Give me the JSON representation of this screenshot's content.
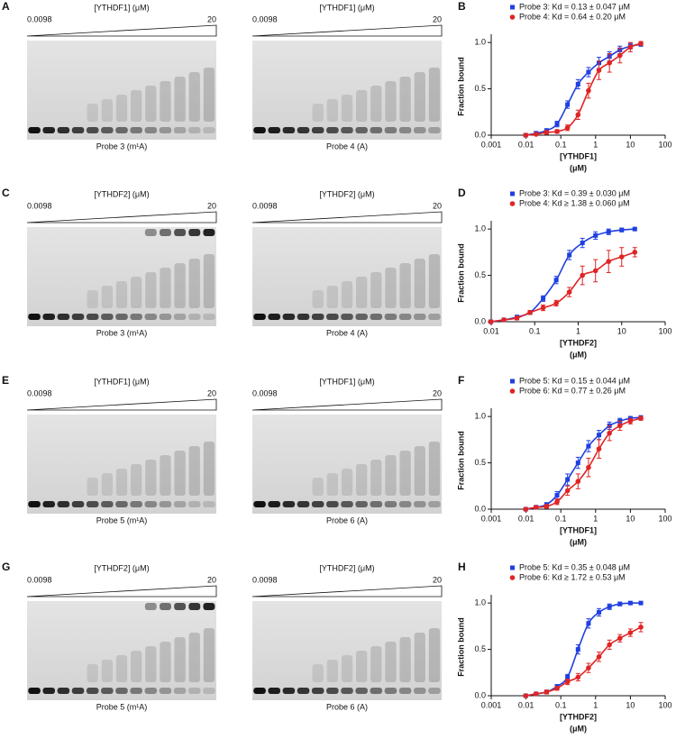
{
  "panels": [
    {
      "label": "A",
      "gels": [
        {
          "protein": "[YTHDF1] (μM)",
          "low": "0.0098",
          "high": "20",
          "caption": "Probe 3 (m¹A)"
        },
        {
          "protein": "[YTHDF1] (μM)",
          "low": "0.0098",
          "high": "20",
          "caption": "Probe 4 (A)"
        }
      ]
    },
    {
      "label": "C",
      "gels": [
        {
          "protein": "[YTHDF2] (μM)",
          "low": "0.0098",
          "high": "20",
          "caption": "Probe 3 (m¹A)"
        },
        {
          "protein": "[YTHDF2] (μM)",
          "low": "0.0098",
          "high": "20",
          "caption": "Probe 4 (A)"
        }
      ]
    },
    {
      "label": "E",
      "gels": [
        {
          "protein": "[YTHDF1] (μM)",
          "low": "0.0098",
          "high": "20",
          "caption": "Probe 5 (m¹A)"
        },
        {
          "protein": "[YTHDF1] (μM)",
          "low": "0.0098",
          "high": "20",
          "caption": "Probe 6 (A)"
        }
      ]
    },
    {
      "label": "G",
      "gels": [
        {
          "protein": "[YTHDF2] (μM)",
          "low": "0.0098",
          "high": "20",
          "caption": "Probe 5 (m¹A)"
        },
        {
          "protein": "[YTHDF2] (μM)",
          "low": "0.0098",
          "high": "20",
          "caption": "Probe 6 (A)"
        }
      ]
    }
  ],
  "chart_data": [
    {
      "type": "scatter",
      "label": "B",
      "ylabel": "Fraction bound",
      "xlabel": "[YTHDF1]",
      "xlabel_unit": "(μM)",
      "log_x": true,
      "xlim": [
        0.001,
        100
      ],
      "xticks": [
        0.001,
        0.01,
        0.1,
        1,
        10,
        100
      ],
      "ylim": [
        0,
        1.05
      ],
      "yticks": [
        {
          "value": 0,
          "label": "0.0"
        },
        0.5,
        {
          "value": 1,
          "label": "1.0"
        }
      ],
      "x": [
        0.0098,
        0.0195,
        0.039,
        0.078,
        0.156,
        0.3125,
        0.625,
        1.25,
        2.5,
        5,
        10,
        20
      ],
      "series": [
        {
          "name": "Probe 3: Kd = 0.13 ± 0.047 μM",
          "color": "#1f3fe0",
          "marker": "square",
          "values": [
            0,
            0.02,
            0.05,
            0.12,
            0.33,
            0.55,
            0.68,
            0.78,
            0.85,
            0.92,
            0.96,
            0.98
          ],
          "errors": [
            0.01,
            0.02,
            0.02,
            0.03,
            0.04,
            0.05,
            0.05,
            0.06,
            0.05,
            0.04,
            0.03,
            0.02
          ]
        },
        {
          "name": "Probe 4: Kd = 0.64 ± 0.20 μM",
          "color": "#e02424",
          "marker": "circle",
          "values": [
            0,
            0.01,
            0.03,
            0.04,
            0.08,
            0.22,
            0.48,
            0.7,
            0.78,
            0.86,
            0.95,
            0.99
          ],
          "errors": [
            0.01,
            0.01,
            0.02,
            0.02,
            0.03,
            0.05,
            0.08,
            0.1,
            0.1,
            0.08,
            0.05,
            0.02
          ]
        }
      ]
    },
    {
      "type": "scatter",
      "label": "D",
      "ylabel": "Fraction bound",
      "xlabel": "[YTHDF2]",
      "xlabel_unit": "(μM)",
      "log_x": true,
      "xlim": [
        0.01,
        100
      ],
      "xticks": [
        0.01,
        0.1,
        1,
        10,
        100
      ],
      "ylim": [
        0,
        1.05
      ],
      "yticks": [
        {
          "value": 0,
          "label": "0.0"
        },
        0.5,
        {
          "value": 1,
          "label": "1.0"
        }
      ],
      "x": [
        0.0098,
        0.0195,
        0.039,
        0.078,
        0.156,
        0.3125,
        0.625,
        1.25,
        2.5,
        5,
        10,
        20
      ],
      "series": [
        {
          "name": "Probe 3: Kd = 0.39 ± 0.030 μM",
          "color": "#1f3fe0",
          "marker": "square",
          "values": [
            0,
            0.02,
            0.05,
            0.1,
            0.25,
            0.45,
            0.72,
            0.85,
            0.93,
            0.97,
            0.99,
            1.0
          ],
          "errors": [
            0.01,
            0.01,
            0.02,
            0.02,
            0.03,
            0.04,
            0.05,
            0.05,
            0.04,
            0.03,
            0.02,
            0.01
          ]
        },
        {
          "name": "Probe 4: Kd ≥ 1.38 ± 0.060 μM",
          "color": "#e02424",
          "marker": "circle",
          "values": [
            0,
            0.02,
            0.04,
            0.1,
            0.15,
            0.2,
            0.32,
            0.5,
            0.55,
            0.65,
            0.7,
            0.75
          ],
          "errors": [
            0.01,
            0.01,
            0.02,
            0.02,
            0.03,
            0.03,
            0.05,
            0.1,
            0.12,
            0.12,
            0.1,
            0.05
          ]
        }
      ]
    },
    {
      "type": "scatter",
      "label": "F",
      "ylabel": "Fraction bound",
      "xlabel": "[YTHDF1]",
      "xlabel_unit": "(μM)",
      "log_x": true,
      "xlim": [
        0.001,
        100
      ],
      "xticks": [
        0.001,
        0.01,
        0.1,
        1,
        10,
        100
      ],
      "ylim": [
        0,
        1.05
      ],
      "yticks": [
        {
          "value": 0,
          "label": "0.0"
        },
        0.5,
        {
          "value": 1,
          "label": "1.0"
        }
      ],
      "x": [
        0.0098,
        0.0195,
        0.039,
        0.078,
        0.156,
        0.3125,
        0.625,
        1.25,
        2.5,
        5,
        10,
        20
      ],
      "series": [
        {
          "name": "Probe 5: Kd = 0.15 ± 0.044 μM",
          "color": "#1f3fe0",
          "marker": "square",
          "values": [
            0,
            0.02,
            0.05,
            0.15,
            0.32,
            0.5,
            0.68,
            0.8,
            0.9,
            0.95,
            0.98,
            0.99
          ],
          "errors": [
            0.01,
            0.02,
            0.02,
            0.04,
            0.06,
            0.06,
            0.06,
            0.05,
            0.04,
            0.03,
            0.02,
            0.01
          ]
        },
        {
          "name": "Probe 6: Kd = 0.77 ± 0.26 μM",
          "color": "#e02424",
          "marker": "circle",
          "values": [
            0,
            0.02,
            0.03,
            0.08,
            0.2,
            0.3,
            0.45,
            0.65,
            0.82,
            0.9,
            0.95,
            0.98
          ],
          "errors": [
            0.01,
            0.01,
            0.02,
            0.03,
            0.05,
            0.08,
            0.1,
            0.1,
            0.08,
            0.05,
            0.03,
            0.02
          ]
        }
      ]
    },
    {
      "type": "scatter",
      "label": "H",
      "ylabel": "Fraction bound",
      "xlabel": "[YTHDF2]",
      "xlabel_unit": "(μM)",
      "log_x": true,
      "xlim": [
        0.001,
        100
      ],
      "xticks": [
        0.001,
        0.01,
        0.1,
        1,
        10,
        100
      ],
      "ylim": [
        0,
        1.05
      ],
      "yticks": [
        {
          "value": 0,
          "label": "0.0"
        },
        0.5,
        {
          "value": 1,
          "label": "1.0"
        }
      ],
      "x": [
        0.0098,
        0.0195,
        0.039,
        0.078,
        0.156,
        0.3125,
        0.625,
        1.25,
        2.5,
        5,
        10,
        20
      ],
      "series": [
        {
          "name": "Probe 5: Kd = 0.35 ± 0.048 μM",
          "color": "#1f3fe0",
          "marker": "square",
          "values": [
            0,
            0.02,
            0.04,
            0.1,
            0.2,
            0.5,
            0.78,
            0.9,
            0.96,
            0.99,
            1.0,
            1.0
          ],
          "errors": [
            0.01,
            0.01,
            0.02,
            0.02,
            0.03,
            0.05,
            0.05,
            0.04,
            0.03,
            0.02,
            0.01,
            0.01
          ]
        },
        {
          "name": "Probe 6: Kd ≥ 1.72 ± 0.53 μM",
          "color": "#e02424",
          "marker": "circle",
          "values": [
            0,
            0.02,
            0.04,
            0.08,
            0.15,
            0.2,
            0.3,
            0.42,
            0.55,
            0.62,
            0.68,
            0.74
          ],
          "errors": [
            0.01,
            0.01,
            0.02,
            0.02,
            0.03,
            0.04,
            0.05,
            0.05,
            0.05,
            0.04,
            0.04,
            0.05
          ]
        }
      ]
    }
  ]
}
